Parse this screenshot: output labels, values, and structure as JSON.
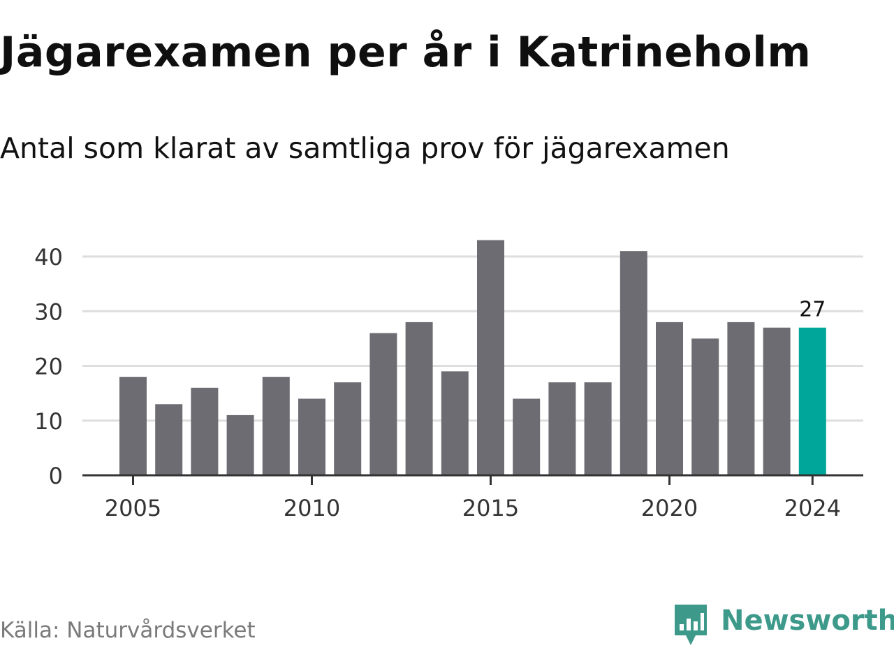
{
  "header": {
    "title": "Jägarexamen per år i Katrineholm",
    "subtitle": "Antal som klarat av samtliga prov för jägarexamen"
  },
  "footer": {
    "source": "Källa: Naturvårdsverket",
    "brand": "Newsworthy",
    "brand_icon": "newsworthy-logo-icon"
  },
  "colors": {
    "bar": "#6d6c72",
    "highlight": "#00a699",
    "brand": "#3d9a8a"
  },
  "chart_data": {
    "type": "bar",
    "title": "Jägarexamen per år i Katrineholm",
    "subtitle": "Antal som klarat av samtliga prov för jägarexamen",
    "xlabel": "",
    "ylabel": "",
    "x": [
      2005,
      2006,
      2007,
      2008,
      2009,
      2010,
      2011,
      2012,
      2013,
      2014,
      2015,
      2016,
      2017,
      2018,
      2019,
      2020,
      2021,
      2022,
      2023,
      2024
    ],
    "values": [
      18,
      13,
      16,
      11,
      18,
      14,
      17,
      26,
      28,
      19,
      43,
      14,
      17,
      17,
      41,
      28,
      25,
      28,
      27,
      27
    ],
    "highlight": 2024,
    "data_labels": [
      {
        "x": 2024,
        "label": "27"
      }
    ],
    "ylim": [
      0,
      40
    ],
    "yticks": [
      0,
      10,
      20,
      30,
      40
    ],
    "xticks": [
      2005,
      2010,
      2015,
      2020,
      2024
    ],
    "grid": true,
    "legend": "none"
  }
}
